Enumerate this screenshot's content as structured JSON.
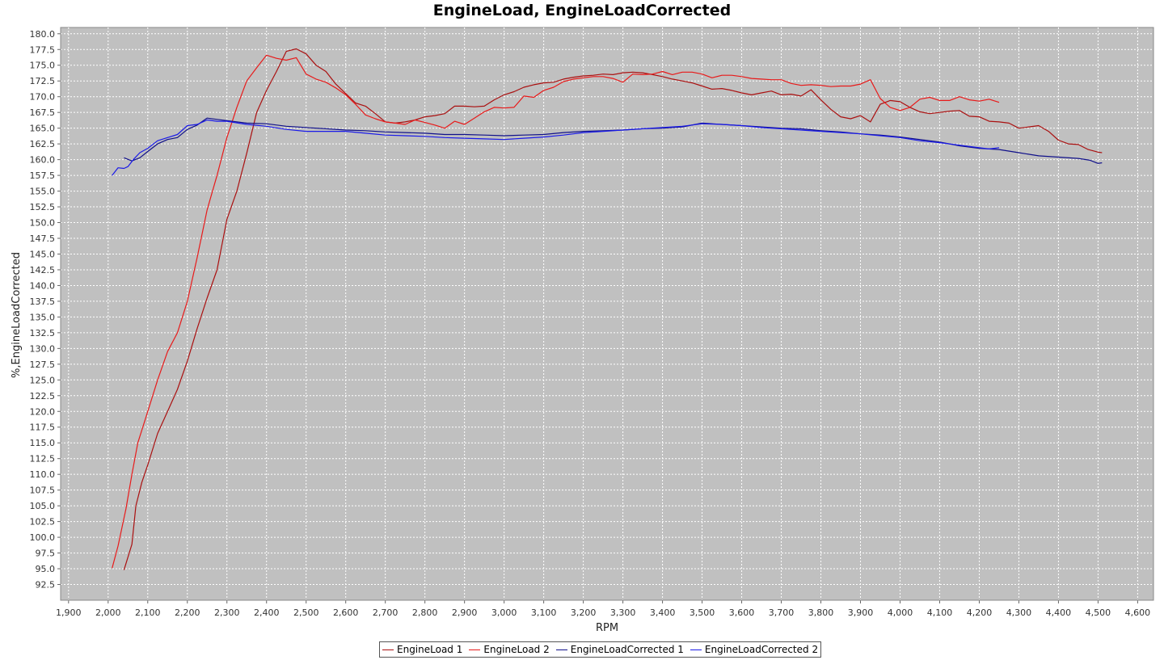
{
  "chart_data": {
    "type": "line",
    "title": "EngineLoad, EngineLoadCorrected",
    "xlabel": "RPM",
    "ylabel": "%,EngineLoadCorrected",
    "xlim": [
      1880,
      4640
    ],
    "ylim": [
      90.0,
      181.0
    ],
    "xticks": [
      1900,
      2000,
      2100,
      2200,
      2300,
      2400,
      2500,
      2600,
      2700,
      2800,
      2900,
      3000,
      3100,
      3200,
      3300,
      3400,
      3500,
      3600,
      3700,
      3800,
      3900,
      4000,
      4100,
      4200,
      4300,
      4400,
      4500,
      4600
    ],
    "xtick_labels": [
      "1,900",
      "2,000",
      "2,100",
      "2,200",
      "2,300",
      "2,400",
      "2,500",
      "2,600",
      "2,700",
      "2,800",
      "2,900",
      "3,000",
      "3,100",
      "3,200",
      "3,300",
      "3,400",
      "3,500",
      "3,600",
      "3,700",
      "3,800",
      "3,900",
      "4,000",
      "4,100",
      "4,200",
      "4,300",
      "4,400",
      "4,500",
      "4,600"
    ],
    "yticks": [
      92.5,
      95.0,
      97.5,
      100.0,
      102.5,
      105.0,
      107.5,
      110.0,
      112.5,
      115.0,
      117.5,
      120.0,
      122.5,
      125.0,
      127.5,
      130.0,
      132.5,
      135.0,
      137.5,
      140.0,
      142.5,
      145.0,
      147.5,
      150.0,
      152.5,
      155.0,
      157.5,
      160.0,
      162.5,
      165.0,
      167.5,
      170.0,
      172.5,
      175.0,
      177.5,
      180.0
    ],
    "ytick_labels": [
      "92.5",
      "95.0",
      "97.5",
      "100.0",
      "102.5",
      "105.0",
      "107.5",
      "110.0",
      "112.5",
      "115.0",
      "117.5",
      "120.0",
      "122.5",
      "125.0",
      "127.5",
      "130.0",
      "132.5",
      "135.0",
      "137.5",
      "140.0",
      "142.5",
      "145.0",
      "147.5",
      "150.0",
      "152.5",
      "155.0",
      "157.5",
      "160.0",
      "162.5",
      "165.0",
      "167.5",
      "170.0",
      "172.5",
      "175.0",
      "177.5",
      "180.0"
    ],
    "grid": true,
    "legend_position": "bottom",
    "series": [
      {
        "name": "EngineLoad 1",
        "color": "#aa1010",
        "x": [
          2040,
          2060,
          2070,
          2085,
          2100,
          2125,
          2150,
          2175,
          2200,
          2225,
          2250,
          2275,
          2300,
          2325,
          2350,
          2375,
          2400,
          2425,
          2450,
          2475,
          2500,
          2525,
          2550,
          2575,
          2600,
          2625,
          2650,
          2675,
          2700,
          2725,
          2750,
          2775,
          2800,
          2825,
          2850,
          2875,
          2900,
          2925,
          2950,
          2975,
          3000,
          3025,
          3050,
          3075,
          3100,
          3125,
          3150,
          3175,
          3200,
          3225,
          3250,
          3275,
          3300,
          3325,
          3350,
          3375,
          3400,
          3425,
          3450,
          3475,
          3500,
          3525,
          3550,
          3575,
          3600,
          3625,
          3650,
          3675,
          3700,
          3725,
          3750,
          3775,
          3800,
          3825,
          3850,
          3875,
          3900,
          3925,
          3950,
          3975,
          4000,
          4025,
          4050,
          4075,
          4100,
          4125,
          4150,
          4175,
          4200,
          4225,
          4250,
          4275,
          4300,
          4325,
          4350,
          4375,
          4400,
          4425,
          4450,
          4475,
          4500,
          4510
        ],
        "values": [
          94.8,
          98.9,
          105.0,
          108.7,
          111.5,
          116.5,
          120.0,
          123.5,
          128.0,
          133.2,
          138.0,
          142.5,
          150.5,
          155.0,
          161.0,
          167.5,
          171.0,
          174.0,
          177.2,
          177.6,
          176.8,
          175.0,
          174.0,
          172.0,
          170.5,
          169.0,
          168.5,
          167.3,
          166.0,
          165.8,
          166.0,
          166.3,
          166.8,
          167.0,
          167.3,
          168.5,
          168.5,
          168.4,
          168.5,
          169.5,
          170.3,
          170.8,
          171.5,
          171.9,
          172.2,
          172.3,
          172.8,
          173.1,
          173.3,
          173.4,
          173.6,
          173.5,
          173.8,
          173.9,
          173.8,
          173.5,
          173.2,
          172.8,
          172.5,
          172.2,
          171.7,
          171.2,
          171.3,
          171.0,
          170.6,
          170.3,
          170.6,
          170.9,
          170.3,
          170.4,
          170.1,
          171.1,
          169.5,
          168.0,
          166.8,
          166.5,
          167.0,
          166.0,
          168.8,
          169.4,
          169.2,
          168.3,
          167.6,
          167.3,
          167.5,
          167.7,
          167.8,
          166.9,
          166.8,
          166.1,
          166.0,
          165.8,
          165.0,
          165.2,
          165.4,
          164.5,
          163.1,
          162.5,
          162.4,
          161.6,
          161.2,
          161.1
        ]
      },
      {
        "name": "EngineLoad 2",
        "color": "#e81a1a",
        "x": [
          2010,
          2025,
          2045,
          2060,
          2075,
          2100,
          2125,
          2150,
          2175,
          2200,
          2225,
          2250,
          2275,
          2300,
          2325,
          2350,
          2375,
          2400,
          2425,
          2450,
          2475,
          2500,
          2525,
          2550,
          2575,
          2600,
          2625,
          2650,
          2675,
          2700,
          2725,
          2750,
          2775,
          2800,
          2825,
          2850,
          2875,
          2900,
          2925,
          2950,
          2975,
          3000,
          3025,
          3050,
          3075,
          3100,
          3125,
          3150,
          3175,
          3200,
          3225,
          3250,
          3275,
          3300,
          3325,
          3350,
          3375,
          3400,
          3425,
          3450,
          3475,
          3500,
          3525,
          3550,
          3575,
          3600,
          3625,
          3650,
          3675,
          3700,
          3725,
          3750,
          3775,
          3800,
          3825,
          3850,
          3875,
          3900,
          3925,
          3950,
          3975,
          4000,
          4025,
          4050,
          4075,
          4100,
          4125,
          4150,
          4175,
          4200,
          4225,
          4250
        ],
        "values": [
          95.1,
          98.6,
          104.5,
          110.0,
          115.0,
          120.0,
          125.0,
          129.5,
          132.5,
          137.5,
          144.5,
          152.0,
          157.5,
          163.5,
          168.3,
          172.5,
          174.6,
          176.6,
          176.1,
          175.8,
          176.2,
          173.6,
          172.8,
          172.3,
          171.4,
          170.3,
          168.8,
          167.1,
          166.5,
          166.0,
          165.8,
          165.6,
          166.3,
          165.9,
          165.5,
          165.0,
          166.1,
          165.6,
          166.6,
          167.6,
          168.3,
          168.2,
          168.3,
          170.1,
          169.9,
          171.0,
          171.5,
          172.4,
          172.8,
          173.0,
          173.2,
          173.2,
          172.9,
          172.3,
          173.6,
          173.5,
          173.6,
          174.0,
          173.5,
          173.9,
          173.9,
          173.6,
          173.0,
          173.4,
          173.4,
          173.2,
          172.9,
          172.8,
          172.7,
          172.7,
          172.1,
          171.8,
          171.9,
          171.8,
          171.6,
          171.7,
          171.7,
          172.0,
          172.7,
          169.7,
          168.3,
          167.8,
          168.3,
          169.6,
          169.9,
          169.4,
          169.4,
          170.0,
          169.5,
          169.3,
          169.6,
          169.1
        ]
      },
      {
        "name": "EngineLoadCorrected 1",
        "color": "#10108a",
        "x": [
          2040,
          2060,
          2080,
          2100,
          2125,
          2150,
          2175,
          2200,
          2225,
          2250,
          2275,
          2300,
          2350,
          2400,
          2450,
          2500,
          2550,
          2600,
          2650,
          2700,
          2750,
          2800,
          2850,
          2900,
          2950,
          3000,
          3050,
          3100,
          3150,
          3200,
          3250,
          3300,
          3350,
          3400,
          3450,
          3500,
          3550,
          3600,
          3650,
          3700,
          3750,
          3800,
          3850,
          3900,
          3950,
          4000,
          4050,
          4100,
          4150,
          4200,
          4250,
          4300,
          4350,
          4400,
          4450,
          4480,
          4500,
          4510
        ],
        "values": [
          160.3,
          159.8,
          160.3,
          161.3,
          162.5,
          163.2,
          163.5,
          164.8,
          165.5,
          166.6,
          166.4,
          166.2,
          165.8,
          165.7,
          165.3,
          165.1,
          164.9,
          164.7,
          164.6,
          164.4,
          164.3,
          164.2,
          164.0,
          164.0,
          163.9,
          163.8,
          163.9,
          164.0,
          164.3,
          164.5,
          164.6,
          164.7,
          164.9,
          165.0,
          165.2,
          165.8,
          165.6,
          165.4,
          165.2,
          165.0,
          164.9,
          164.6,
          164.4,
          164.1,
          163.9,
          163.6,
          163.2,
          162.8,
          162.2,
          161.8,
          161.6,
          161.1,
          160.6,
          160.4,
          160.2,
          159.9,
          159.4,
          159.5
        ]
      },
      {
        "name": "EngineLoadCorrected 2",
        "color": "#1a1ae8",
        "x": [
          2010,
          2025,
          2040,
          2050,
          2065,
          2080,
          2100,
          2125,
          2150,
          2175,
          2200,
          2225,
          2250,
          2275,
          2300,
          2350,
          2400,
          2450,
          2500,
          2550,
          2600,
          2650,
          2700,
          2750,
          2800,
          2850,
          2900,
          2950,
          3000,
          3050,
          3100,
          3150,
          3200,
          3250,
          3300,
          3350,
          3400,
          3450,
          3500,
          3550,
          3600,
          3650,
          3700,
          3750,
          3800,
          3850,
          3900,
          3950,
          4000,
          4050,
          4100,
          4150,
          4200,
          4225,
          4250
        ],
        "values": [
          157.5,
          158.7,
          158.6,
          158.9,
          160.1,
          161.1,
          161.8,
          163.0,
          163.5,
          164.0,
          165.4,
          165.6,
          166.3,
          166.1,
          166.1,
          165.6,
          165.3,
          164.8,
          164.5,
          164.5,
          164.5,
          164.2,
          163.9,
          163.8,
          163.7,
          163.5,
          163.4,
          163.3,
          163.2,
          163.4,
          163.6,
          163.9,
          164.3,
          164.5,
          164.7,
          164.9,
          165.1,
          165.3,
          165.7,
          165.6,
          165.4,
          165.1,
          164.9,
          164.7,
          164.5,
          164.3,
          164.1,
          163.8,
          163.5,
          163.0,
          162.7,
          162.3,
          161.9,
          161.7,
          161.9
        ]
      }
    ]
  }
}
